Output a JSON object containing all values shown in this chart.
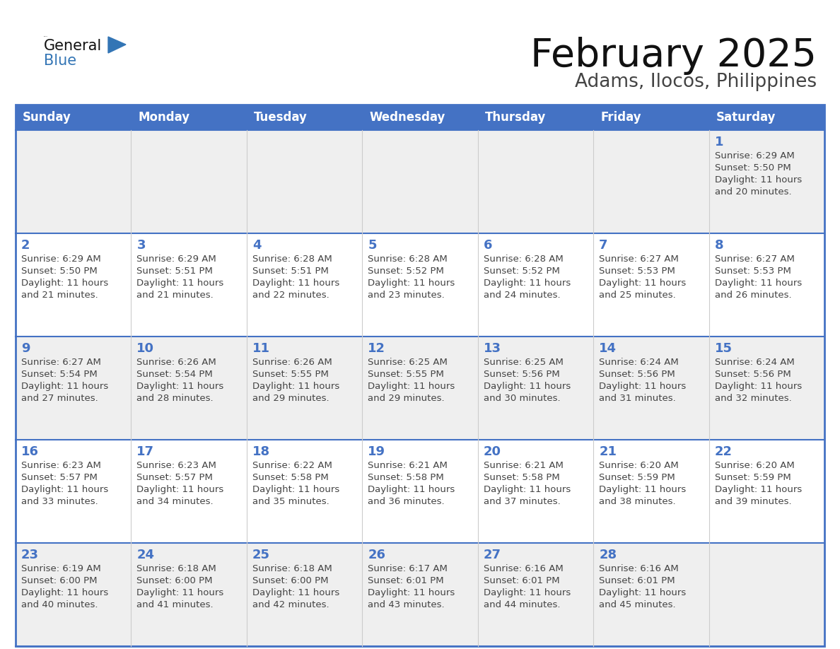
{
  "title": "February 2025",
  "subtitle": "Adams, Ilocos, Philippines",
  "days_of_week": [
    "Sunday",
    "Monday",
    "Tuesday",
    "Wednesday",
    "Thursday",
    "Friday",
    "Saturday"
  ],
  "header_bg": "#4472C4",
  "header_text": "#FFFFFF",
  "cell_bg_odd": "#EFEFEF",
  "cell_bg_even": "#FFFFFF",
  "day_num_color": "#4472C4",
  "text_color": "#444444",
  "border_color": "#4472C4",
  "row_line_color": "#4472C4",
  "col_line_color": "#CCCCCC",
  "title_color": "#111111",
  "subtitle_color": "#444444",
  "logo_general_color": "#111111",
  "logo_blue_color": "#3375B5",
  "logo_triangle_color": "#3375B5",
  "calendar_data": [
    [
      null,
      null,
      null,
      null,
      null,
      null,
      {
        "day": "1",
        "sunrise": "6:29 AM",
        "sunset": "5:50 PM",
        "daylight": "11 hours",
        "daylight2": "and 20 minutes."
      }
    ],
    [
      {
        "day": "2",
        "sunrise": "6:29 AM",
        "sunset": "5:50 PM",
        "daylight": "11 hours",
        "daylight2": "and 21 minutes."
      },
      {
        "day": "3",
        "sunrise": "6:29 AM",
        "sunset": "5:51 PM",
        "daylight": "11 hours",
        "daylight2": "and 21 minutes."
      },
      {
        "day": "4",
        "sunrise": "6:28 AM",
        "sunset": "5:51 PM",
        "daylight": "11 hours",
        "daylight2": "and 22 minutes."
      },
      {
        "day": "5",
        "sunrise": "6:28 AM",
        "sunset": "5:52 PM",
        "daylight": "11 hours",
        "daylight2": "and 23 minutes."
      },
      {
        "day": "6",
        "sunrise": "6:28 AM",
        "sunset": "5:52 PM",
        "daylight": "11 hours",
        "daylight2": "and 24 minutes."
      },
      {
        "day": "7",
        "sunrise": "6:27 AM",
        "sunset": "5:53 PM",
        "daylight": "11 hours",
        "daylight2": "and 25 minutes."
      },
      {
        "day": "8",
        "sunrise": "6:27 AM",
        "sunset": "5:53 PM",
        "daylight": "11 hours",
        "daylight2": "and 26 minutes."
      }
    ],
    [
      {
        "day": "9",
        "sunrise": "6:27 AM",
        "sunset": "5:54 PM",
        "daylight": "11 hours",
        "daylight2": "and 27 minutes."
      },
      {
        "day": "10",
        "sunrise": "6:26 AM",
        "sunset": "5:54 PM",
        "daylight": "11 hours",
        "daylight2": "and 28 minutes."
      },
      {
        "day": "11",
        "sunrise": "6:26 AM",
        "sunset": "5:55 PM",
        "daylight": "11 hours",
        "daylight2": "and 29 minutes."
      },
      {
        "day": "12",
        "sunrise": "6:25 AM",
        "sunset": "5:55 PM",
        "daylight": "11 hours",
        "daylight2": "and 29 minutes."
      },
      {
        "day": "13",
        "sunrise": "6:25 AM",
        "sunset": "5:56 PM",
        "daylight": "11 hours",
        "daylight2": "and 30 minutes."
      },
      {
        "day": "14",
        "sunrise": "6:24 AM",
        "sunset": "5:56 PM",
        "daylight": "11 hours",
        "daylight2": "and 31 minutes."
      },
      {
        "day": "15",
        "sunrise": "6:24 AM",
        "sunset": "5:56 PM",
        "daylight": "11 hours",
        "daylight2": "and 32 minutes."
      }
    ],
    [
      {
        "day": "16",
        "sunrise": "6:23 AM",
        "sunset": "5:57 PM",
        "daylight": "11 hours",
        "daylight2": "and 33 minutes."
      },
      {
        "day": "17",
        "sunrise": "6:23 AM",
        "sunset": "5:57 PM",
        "daylight": "11 hours",
        "daylight2": "and 34 minutes."
      },
      {
        "day": "18",
        "sunrise": "6:22 AM",
        "sunset": "5:58 PM",
        "daylight": "11 hours",
        "daylight2": "and 35 minutes."
      },
      {
        "day": "19",
        "sunrise": "6:21 AM",
        "sunset": "5:58 PM",
        "daylight": "11 hours",
        "daylight2": "and 36 minutes."
      },
      {
        "day": "20",
        "sunrise": "6:21 AM",
        "sunset": "5:58 PM",
        "daylight": "11 hours",
        "daylight2": "and 37 minutes."
      },
      {
        "day": "21",
        "sunrise": "6:20 AM",
        "sunset": "5:59 PM",
        "daylight": "11 hours",
        "daylight2": "and 38 minutes."
      },
      {
        "day": "22",
        "sunrise": "6:20 AM",
        "sunset": "5:59 PM",
        "daylight": "11 hours",
        "daylight2": "and 39 minutes."
      }
    ],
    [
      {
        "day": "23",
        "sunrise": "6:19 AM",
        "sunset": "6:00 PM",
        "daylight": "11 hours",
        "daylight2": "and 40 minutes."
      },
      {
        "day": "24",
        "sunrise": "6:18 AM",
        "sunset": "6:00 PM",
        "daylight": "11 hours",
        "daylight2": "and 41 minutes."
      },
      {
        "day": "25",
        "sunrise": "6:18 AM",
        "sunset": "6:00 PM",
        "daylight": "11 hours",
        "daylight2": "and 42 minutes."
      },
      {
        "day": "26",
        "sunrise": "6:17 AM",
        "sunset": "6:01 PM",
        "daylight": "11 hours",
        "daylight2": "and 43 minutes."
      },
      {
        "day": "27",
        "sunrise": "6:16 AM",
        "sunset": "6:01 PM",
        "daylight": "11 hours",
        "daylight2": "and 44 minutes."
      },
      {
        "day": "28",
        "sunrise": "6:16 AM",
        "sunset": "6:01 PM",
        "daylight": "11 hours",
        "daylight2": "and 45 minutes."
      },
      null
    ]
  ]
}
